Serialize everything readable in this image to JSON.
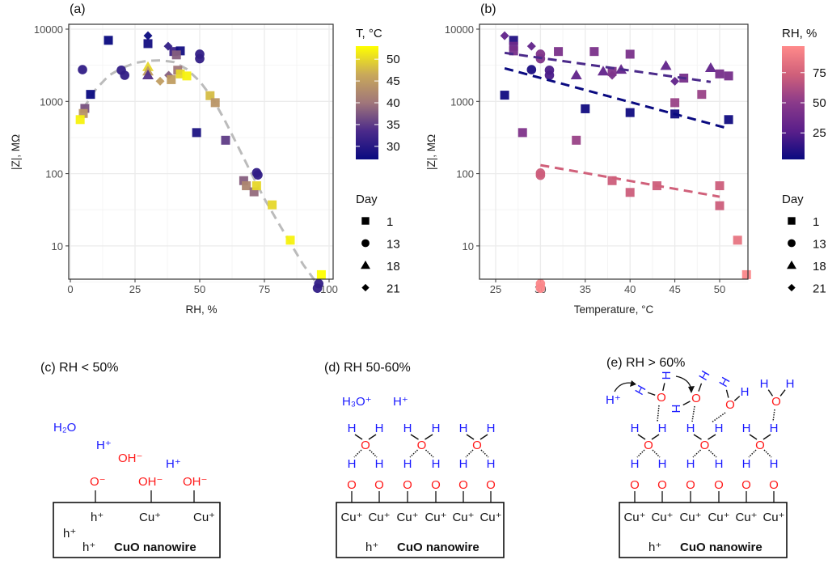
{
  "colors": {
    "grid": "#ebebeb",
    "panel_border": "#333333",
    "trend_a": "#bbbbbb",
    "h_atom": "#1a1aff",
    "o_atom": "#ff1a1a"
  },
  "chart_data": [
    {
      "panel": "(a)",
      "type": "scatter",
      "xlabel": "RH, %",
      "ylabel": "|Z|, MΩ",
      "xlim": [
        0,
        100
      ],
      "ylim": [
        2.3,
        10000
      ],
      "yscale": "log",
      "grid": true,
      "xticks": [
        "0",
        "25",
        "50",
        "75",
        "100"
      ],
      "xtick_values": [
        0,
        25,
        50,
        75,
        100
      ],
      "yticks": [
        "10000",
        "1000",
        "100",
        "10"
      ],
      "ytick_values": [
        10000,
        1000,
        100,
        10
      ],
      "color_legend": {
        "title": "T, °C",
        "ticks": [
          "50",
          "45",
          "40",
          "35",
          "30"
        ],
        "tick_values": [
          50,
          45,
          40,
          35,
          30
        ],
        "range": [
          27,
          53
        ],
        "colors": [
          "#0a0a80",
          "#4b2a8a",
          "#a0767a",
          "#c9a95a",
          "#ffff00"
        ]
      },
      "shape_legend": {
        "title": "Day",
        "items": [
          {
            "label": "1",
            "shape": "square"
          },
          {
            "label": "13",
            "shape": "circle"
          },
          {
            "label": "18",
            "shape": "triangle"
          },
          {
            "label": "21",
            "shape": "diamond"
          }
        ]
      },
      "point_fields": [
        "RH",
        "Z",
        "T",
        "day"
      ],
      "points": [
        [
          14.7,
          7000,
          27,
          1
        ],
        [
          30,
          8100,
          27,
          21
        ],
        [
          30,
          6300,
          28,
          1
        ],
        [
          37.8,
          5800,
          31,
          21
        ],
        [
          40,
          4900,
          32,
          1
        ],
        [
          42.5,
          5000,
          28,
          1
        ],
        [
          41,
          4400,
          38,
          1
        ],
        [
          50,
          4500,
          31,
          13
        ],
        [
          50,
          3900,
          31,
          13
        ],
        [
          4.7,
          2750,
          31,
          13
        ],
        [
          19.7,
          2700,
          31,
          13
        ],
        [
          21,
          2300,
          31,
          13
        ],
        [
          30,
          3000,
          50,
          18
        ],
        [
          30,
          2600,
          45,
          18
        ],
        [
          30,
          2300,
          34,
          18
        ],
        [
          34.7,
          1900,
          45,
          21
        ],
        [
          38,
          2300,
          38,
          21
        ],
        [
          39,
          2000,
          45,
          1
        ],
        [
          41.5,
          2700,
          40,
          1
        ],
        [
          42.5,
          2400,
          50,
          1
        ],
        [
          45,
          2250,
          52,
          1
        ],
        [
          7.8,
          1250,
          27,
          1
        ],
        [
          5.6,
          800,
          37,
          1
        ],
        [
          5,
          680,
          44,
          1
        ],
        [
          3.8,
          560,
          52,
          1
        ],
        [
          54,
          1200,
          48,
          1
        ],
        [
          56,
          960,
          44,
          1
        ],
        [
          48.8,
          370,
          29,
          1
        ],
        [
          60,
          290,
          35,
          1
        ],
        [
          72,
          103,
          31,
          13
        ],
        [
          72.5,
          96,
          31,
          13
        ],
        [
          67,
          80,
          38,
          1
        ],
        [
          68,
          68,
          42,
          1
        ],
        [
          71,
          56,
          39,
          1
        ],
        [
          72,
          68,
          50,
          1
        ],
        [
          78,
          37,
          50,
          1
        ],
        [
          85,
          12,
          52,
          1
        ],
        [
          97,
          4,
          53,
          1
        ],
        [
          96,
          3.0,
          31,
          13
        ],
        [
          95.5,
          2.6,
          31,
          13
        ]
      ],
      "trend": {
        "style": "dashed",
        "color": "#bbbbbb",
        "points": [
          [
            5,
            800
          ],
          [
            10,
            1500
          ],
          [
            15,
            2300
          ],
          [
            20,
            2900
          ],
          [
            25,
            3400
          ],
          [
            30,
            3650
          ],
          [
            35,
            3700
          ],
          [
            40,
            3500
          ],
          [
            45,
            2800
          ],
          [
            50,
            1900
          ],
          [
            55,
            1100
          ],
          [
            60,
            520
          ],
          [
            65,
            230
          ],
          [
            70,
            100
          ],
          [
            75,
            45
          ],
          [
            80,
            22
          ],
          [
            85,
            11
          ],
          [
            90,
            5.5
          ],
          [
            96,
            2.8
          ]
        ]
      }
    },
    {
      "panel": "(b)",
      "type": "scatter",
      "xlabel": "Temperature, °C",
      "ylabel": "|Z|, MΩ",
      "xlim": [
        25,
        53
      ],
      "ylim": [
        2.3,
        10000
      ],
      "yscale": "log",
      "grid": true,
      "xticks": [
        "25",
        "30",
        "35",
        "40",
        "45",
        "50"
      ],
      "xtick_values": [
        25,
        30,
        35,
        40,
        45,
        50
      ],
      "yticks": [
        "10000",
        "1000",
        "100",
        "10"
      ],
      "ytick_values": [
        10000,
        1000,
        100,
        10
      ],
      "color_legend": {
        "title": "RH, %",
        "ticks": [
          "75",
          "50",
          "25"
        ],
        "tick_values": [
          75,
          50,
          25
        ],
        "range": [
          3,
          97
        ],
        "colors": [
          "#0a0a80",
          "#5a1f8a",
          "#8a3a8a",
          "#d0607a",
          "#ff8a8a"
        ]
      },
      "shape_legend": {
        "title": "Day",
        "items": [
          {
            "label": "1",
            "shape": "square"
          },
          {
            "label": "13",
            "shape": "circle"
          },
          {
            "label": "18",
            "shape": "triangle"
          },
          {
            "label": "21",
            "shape": "diamond"
          }
        ]
      },
      "point_fields": [
        "T",
        "Z",
        "RH",
        "day"
      ],
      "points": [
        [
          26,
          8100,
          30,
          21
        ],
        [
          27,
          7000,
          10,
          1
        ],
        [
          27,
          5800,
          35,
          1
        ],
        [
          27,
          5000,
          40,
          1
        ],
        [
          29,
          5800,
          30,
          21
        ],
        [
          30,
          4500,
          45,
          13
        ],
        [
          30,
          3900,
          45,
          13
        ],
        [
          32,
          4900,
          42,
          1
        ],
        [
          36,
          4900,
          42,
          1
        ],
        [
          40,
          4500,
          42,
          1
        ],
        [
          29,
          2750,
          8,
          13
        ],
        [
          31,
          2700,
          22,
          13
        ],
        [
          31,
          2300,
          22,
          13
        ],
        [
          34,
          2300,
          30,
          18
        ],
        [
          37,
          2600,
          30,
          18
        ],
        [
          39,
          2750,
          30,
          18
        ],
        [
          44,
          3100,
          30,
          18
        ],
        [
          49,
          2900,
          30,
          18
        ],
        [
          38,
          2300,
          40,
          21
        ],
        [
          38,
          2600,
          45,
          1
        ],
        [
          46,
          2100,
          40,
          1
        ],
        [
          45,
          1900,
          30,
          21
        ],
        [
          50,
          2400,
          40,
          1
        ],
        [
          51,
          2250,
          40,
          1
        ],
        [
          26,
          1220,
          5,
          1
        ],
        [
          45,
          960,
          55,
          1
        ],
        [
          48,
          1250,
          55,
          1
        ],
        [
          35,
          790,
          5,
          1
        ],
        [
          40,
          700,
          5,
          1
        ],
        [
          45,
          670,
          5,
          1
        ],
        [
          51,
          560,
          5,
          1
        ],
        [
          28,
          370,
          45,
          1
        ],
        [
          34,
          290,
          55,
          1
        ],
        [
          30,
          102,
          72,
          13
        ],
        [
          30,
          95,
          72,
          13
        ],
        [
          38,
          80,
          72,
          1
        ],
        [
          40,
          55,
          72,
          1
        ],
        [
          43,
          68,
          72,
          1
        ],
        [
          50,
          68,
          72,
          1
        ],
        [
          50,
          36,
          72,
          1
        ],
        [
          52,
          12,
          85,
          1
        ],
        [
          53,
          4,
          95,
          1
        ],
        [
          30,
          3.0,
          95,
          13
        ],
        [
          30,
          2.6,
          95,
          13
        ]
      ],
      "trends": [
        {
          "style": "dashed",
          "color": "#4b2a8a",
          "points": [
            [
              26,
              4700
            ],
            [
              49,
              1860
            ]
          ]
        },
        {
          "style": "dashed",
          "color": "#0a0a80",
          "points": [
            [
              26,
              2870
            ],
            [
              51,
              420
            ]
          ]
        },
        {
          "style": "dashed",
          "color": "#d0607a",
          "points": [
            [
              30,
              131
            ],
            [
              50,
              48
            ]
          ]
        }
      ]
    }
  ],
  "diagrams": {
    "c": {
      "title": "(c) RH < 50%",
      "h2o": "H₂O",
      "hplus1": "H⁺",
      "oh_free": "OH⁻",
      "hplus2": "H⁺",
      "surface": [
        "O⁻",
        "OH⁻",
        "OH⁻"
      ],
      "inside": [
        "h⁺",
        "Cu⁺",
        "Cu⁺"
      ],
      "holes": [
        "h⁺",
        "h⁺"
      ],
      "label": "CuO nanowire"
    },
    "d": {
      "title": "(d) RH 50-60%",
      "h3o": "H₃O⁺",
      "hplus": "H⁺",
      "h": "H",
      "o": "O",
      "cu": "Cu⁺",
      "hole": "h⁺",
      "label": "CuO nanowire"
    },
    "e": {
      "title": "(e) RH > 60%",
      "hplus": "H⁺",
      "h": "H",
      "o": "O",
      "cu": "Cu⁺",
      "hole": "h⁺",
      "label": "CuO nanowire"
    }
  }
}
